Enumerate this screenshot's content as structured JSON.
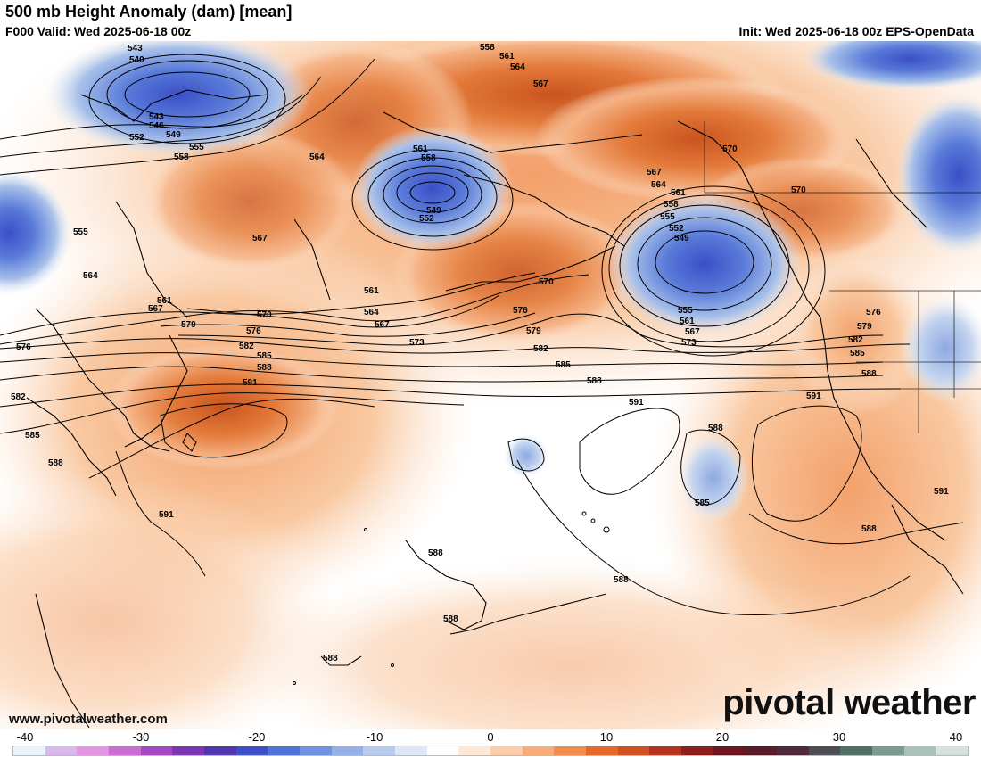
{
  "header": {
    "title": "500 mb Height Anomaly (dam) [mean]",
    "valid": "F000 Valid: Wed 2025-06-18 00z",
    "init": "Init: Wed 2025-06-18 00z EPS-OpenData"
  },
  "branding": {
    "logo_text": "pivotal weather",
    "url": "www.pivotalweather.com"
  },
  "colorbar": {
    "ticks": [
      "-40",
      "-30",
      "-20",
      "-10",
      "0",
      "10",
      "20",
      "30",
      "40"
    ],
    "range": [
      -40,
      40
    ],
    "colors": [
      "#e8f4fb",
      "#d9b8ec",
      "#e295e0",
      "#cc6bd1",
      "#a548bf",
      "#7a36b0",
      "#4f36ad",
      "#3c4fc4",
      "#4e72d6",
      "#6f93e0",
      "#93b1e6",
      "#b8cdee",
      "#dde7f5",
      "#ffffff",
      "#fde7d6",
      "#fbcda8",
      "#f7ae79",
      "#f08c4d",
      "#e46a2c",
      "#cf5020",
      "#b2351b",
      "#8c1f1c",
      "#6b1620",
      "#5a1b2b",
      "#4f2a3b",
      "#4c4d52",
      "#4f6f66",
      "#7c9b90",
      "#a9c0bb",
      "#d5e2df"
    ]
  },
  "contour_labels": [
    "543",
    "540",
    "543",
    "546",
    "549",
    "552",
    "555",
    "558",
    "555",
    "564",
    "561",
    "567",
    "564",
    "567",
    "561",
    "558",
    "549",
    "552",
    "561",
    "564",
    "567",
    "573",
    "570",
    "576",
    "579",
    "582",
    "585",
    "588",
    "591",
    "591",
    "576",
    "582",
    "585",
    "588",
    "558",
    "561",
    "564",
    "567",
    "570",
    "567",
    "564",
    "561",
    "558",
    "555",
    "552",
    "549",
    "555",
    "561",
    "567",
    "573",
    "570",
    "576",
    "579",
    "582",
    "585",
    "588",
    "591",
    "591",
    "588",
    "585",
    "588",
    "588",
    "588",
    "588",
    "591",
    "570",
    "567",
    "576",
    "579",
    "582",
    "585",
    "588",
    "591",
    "588"
  ],
  "map": {
    "description_colors": {
      "ocean_neutral": "#ffffff",
      "positive_anomaly": "#f08c4d",
      "negative_anomaly": "#4e72d6",
      "contour": "#000000",
      "coastline": "#000000"
    }
  }
}
